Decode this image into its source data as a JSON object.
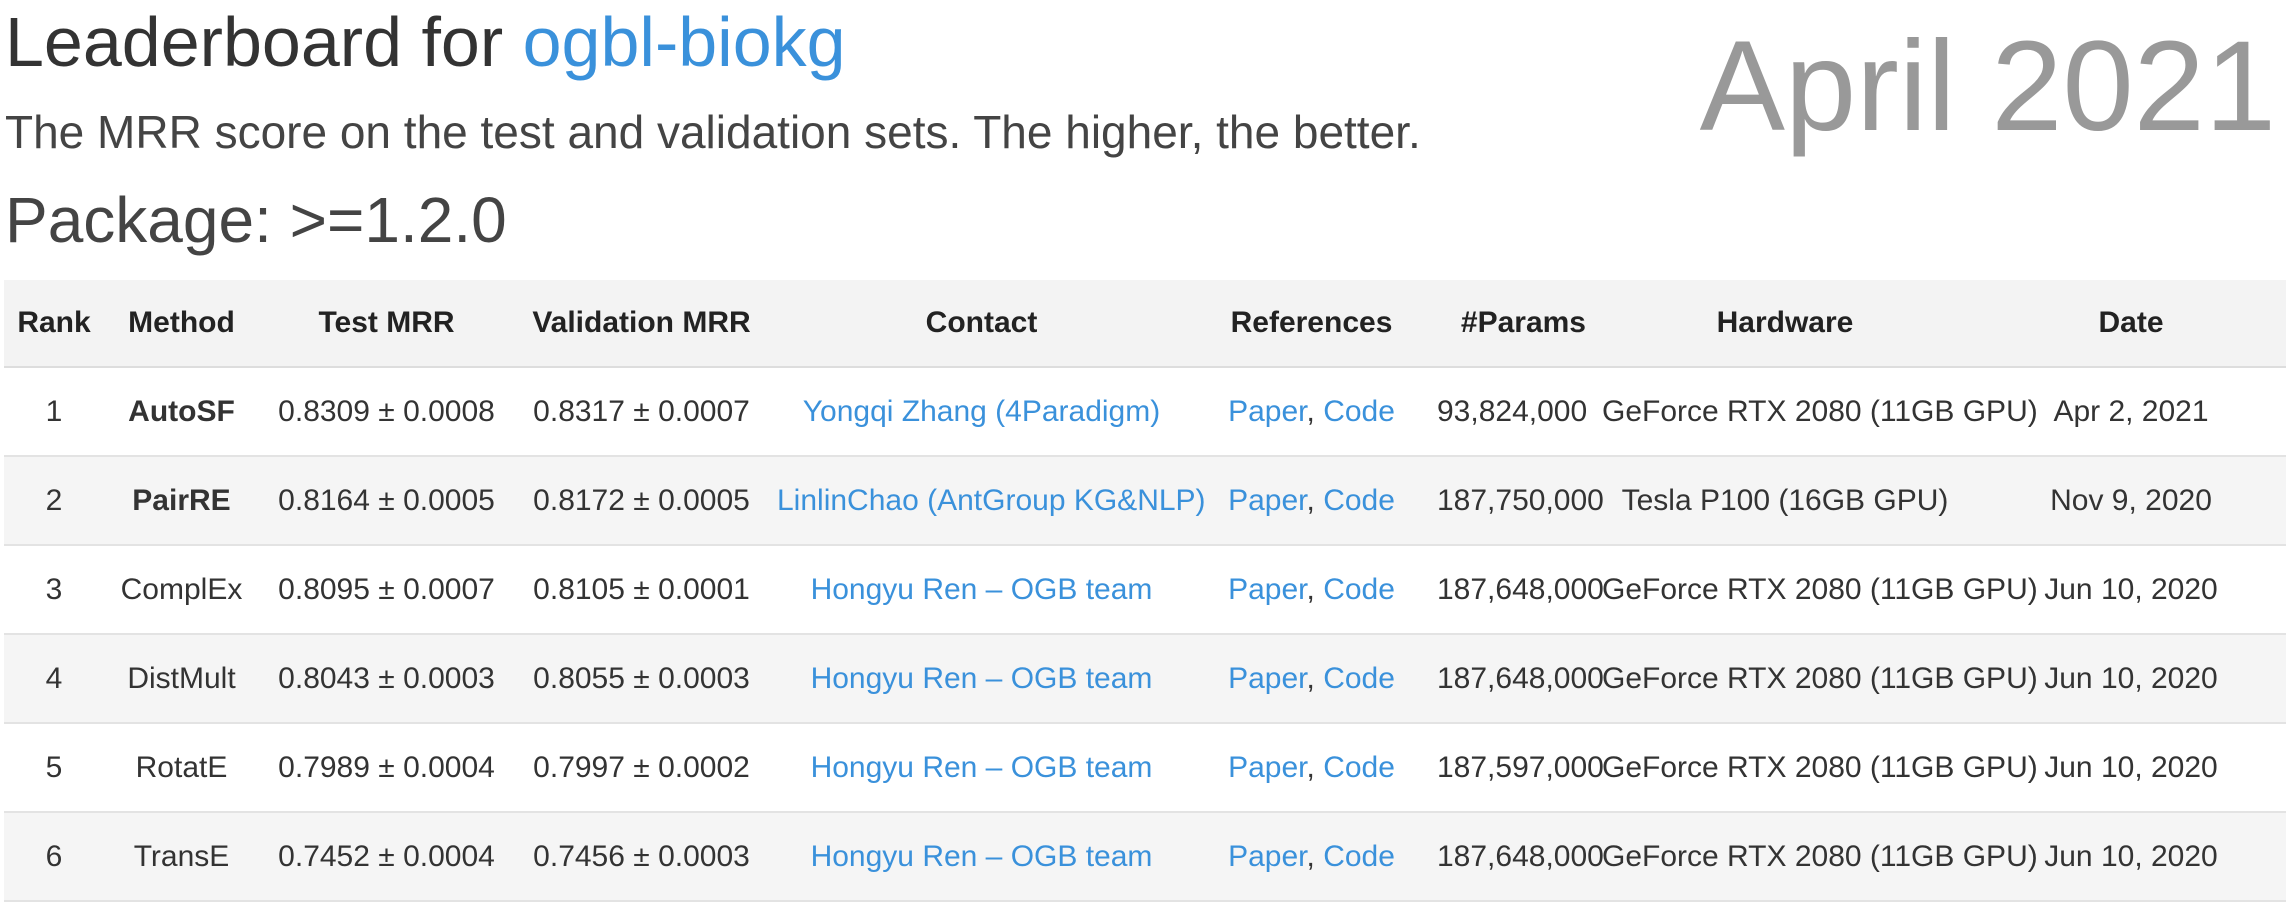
{
  "header": {
    "title_prefix": "Leaderboard for",
    "dataset_name": "ogbl-biokg",
    "subtitle": "The MRR score on the test and validation sets. The higher, the better.",
    "package": "Package: >=1.2.0",
    "date_banner": "April 2021"
  },
  "table": {
    "columns": [
      "Rank",
      "Method",
      "Test MRR",
      "Validation MRR",
      "Contact",
      "References",
      "#Params",
      "Hardware",
      "Date"
    ],
    "reference_separator": ",",
    "rows": [
      {
        "rank": "1",
        "method": "AutoSF",
        "method_bold": true,
        "test_mrr": "0.8309 ± 0.0008",
        "val_mrr": "0.8317 ± 0.0007",
        "contact": "Yongqi Zhang (4Paradigm)",
        "paper": "Paper",
        "code": "Code",
        "params": "93,824,000",
        "hardware": "GeForce RTX 2080 (11GB GPU)",
        "date": "Apr 2, 2021"
      },
      {
        "rank": "2",
        "method": "PairRE",
        "method_bold": true,
        "test_mrr": "0.8164 ± 0.0005",
        "val_mrr": "0.8172 ± 0.0005",
        "contact": "LinlinChao (AntGroup KG&NLP)",
        "paper": "Paper",
        "code": "Code",
        "params": "187,750,000",
        "hardware": "Tesla P100 (16GB GPU)",
        "date": "Nov 9, 2020"
      },
      {
        "rank": "3",
        "method": "ComplEx",
        "method_bold": false,
        "test_mrr": "0.8095 ± 0.0007",
        "val_mrr": "0.8105 ± 0.0001",
        "contact": "Hongyu Ren – OGB team",
        "paper": "Paper",
        "code": "Code",
        "params": "187,648,000",
        "hardware": "GeForce RTX 2080 (11GB GPU)",
        "date": "Jun 10, 2020"
      },
      {
        "rank": "4",
        "method": "DistMult",
        "method_bold": false,
        "test_mrr": "0.8043 ± 0.0003",
        "val_mrr": "0.8055 ± 0.0003",
        "contact": "Hongyu Ren – OGB team",
        "paper": "Paper",
        "code": "Code",
        "params": "187,648,000",
        "hardware": "GeForce RTX 2080 (11GB GPU)",
        "date": "Jun 10, 2020"
      },
      {
        "rank": "5",
        "method": "RotatE",
        "method_bold": false,
        "test_mrr": "0.7989 ± 0.0004",
        "val_mrr": "0.7997 ± 0.0002",
        "contact": "Hongyu Ren – OGB team",
        "paper": "Paper",
        "code": "Code",
        "params": "187,597,000",
        "hardware": "GeForce RTX 2080 (11GB GPU)",
        "date": "Jun 10, 2020"
      },
      {
        "rank": "6",
        "method": "TransE",
        "method_bold": false,
        "test_mrr": "0.7452 ± 0.0004",
        "val_mrr": "0.7456 ± 0.0003",
        "contact": "Hongyu Ren – OGB team",
        "paper": "Paper",
        "code": "Code",
        "params": "187,648,000",
        "hardware": "GeForce RTX 2080 (11GB GPU)",
        "date": "Jun 10, 2020"
      }
    ]
  },
  "colors": {
    "link": "#3a91db",
    "text": "#333333",
    "date_banner": "#999999",
    "header_bg": "#f3f3f3",
    "stripe_bg": "#f5f5f5"
  }
}
